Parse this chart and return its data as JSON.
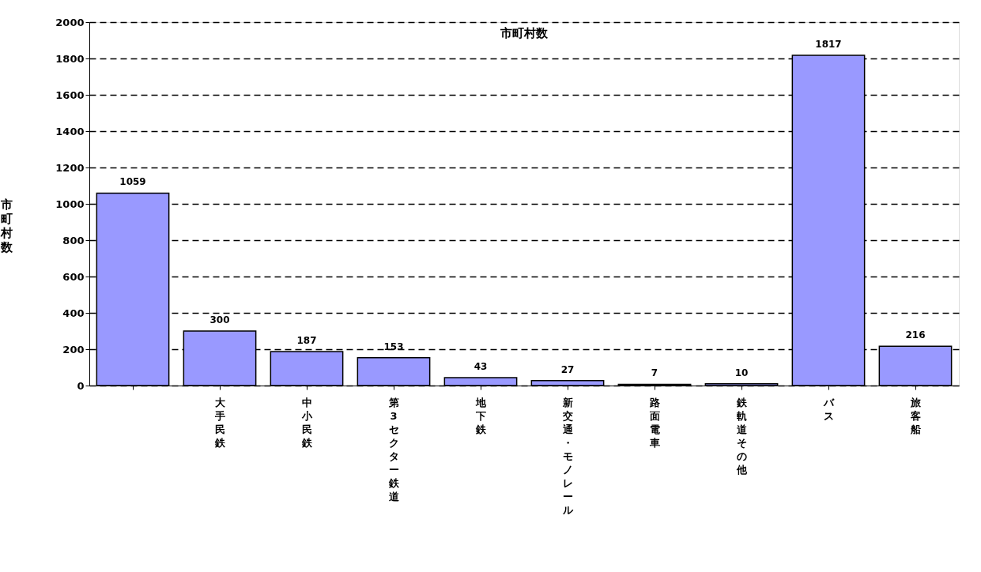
{
  "chart_data": {
    "type": "bar",
    "title": "市町村数",
    "ylabel": "市町村数",
    "categories": [
      null,
      "大手民鉄",
      "中小民鉄",
      "第3セクター鉄道",
      "地下鉄",
      "新交通・モノレール",
      "路面電車",
      "鉄軌道その他",
      "バス",
      "旅客船"
    ],
    "values": [
      1059,
      300,
      187,
      153,
      43,
      27,
      7,
      10,
      1817,
      216
    ],
    "color": "#9999ff",
    "data_labels": true,
    "grid": "y",
    "ylim": [
      0,
      2000
    ],
    "yticks": [
      0,
      200,
      400,
      600,
      800,
      1000,
      1200,
      1400,
      1600,
      1800,
      2000
    ]
  }
}
